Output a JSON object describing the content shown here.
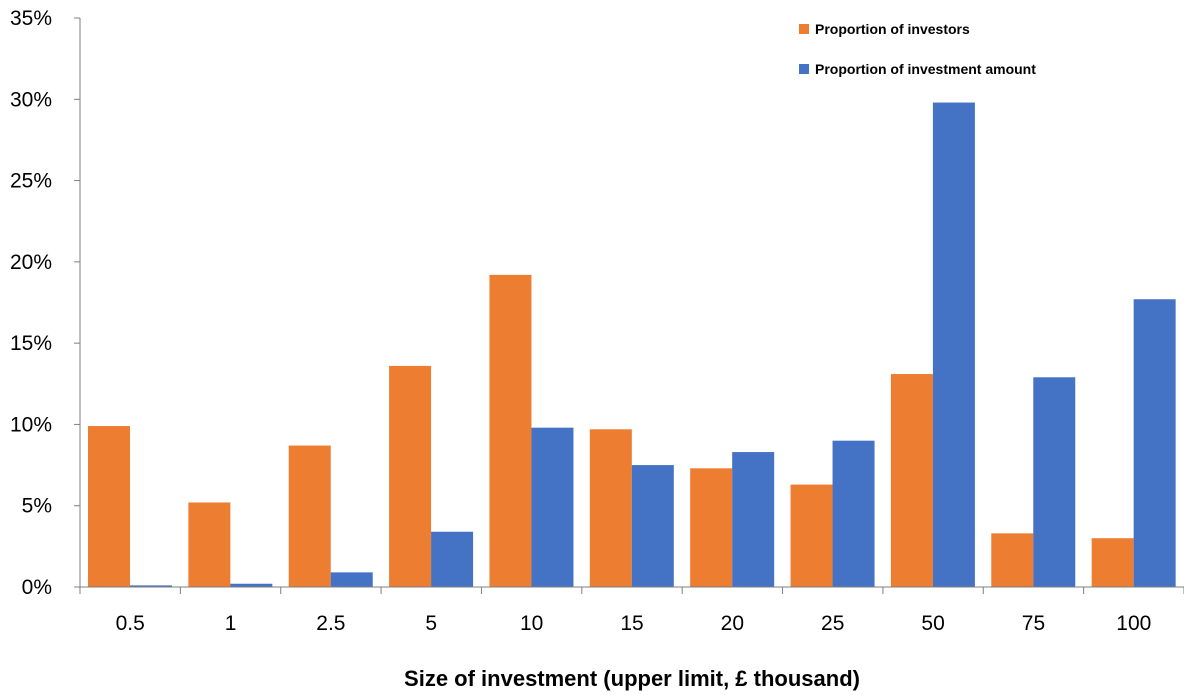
{
  "chart_data": {
    "type": "bar",
    "title": "",
    "xlabel": "Size of investment (upper limit, £ thousand)",
    "ylabel": "",
    "categories": [
      "0.5",
      "1",
      "2.5",
      "5",
      "10",
      "15",
      "20",
      "25",
      "50",
      "75",
      "100"
    ],
    "series": [
      {
        "name": "Proportion of investors",
        "color": "#ed7d31",
        "values": [
          9.9,
          5.2,
          8.7,
          13.6,
          19.2,
          9.7,
          7.3,
          6.3,
          13.1,
          3.3,
          3.0
        ]
      },
      {
        "name": "Proportion of investment amount",
        "color": "#4472c4",
        "values": [
          0.1,
          0.2,
          0.9,
          3.4,
          9.8,
          7.5,
          8.3,
          9.0,
          29.8,
          12.9,
          17.7
        ]
      }
    ],
    "ylim": [
      0,
      35
    ],
    "yticks": [
      0,
      5,
      10,
      15,
      20,
      25,
      30,
      35
    ],
    "ytick_labels": [
      "0%",
      "5%",
      "10%",
      "15%",
      "20%",
      "25%",
      "30%",
      "35%"
    ],
    "grid": false,
    "legend_position": "top-right"
  }
}
